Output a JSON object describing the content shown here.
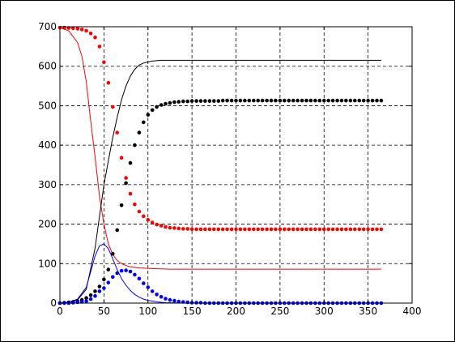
{
  "chart_data": {
    "type": "line",
    "title": "",
    "xlabel": "",
    "ylabel": "",
    "xlim": [
      0,
      400
    ],
    "ylim": [
      0,
      700
    ],
    "x_ticks": [
      0,
      50,
      100,
      150,
      200,
      250,
      300,
      350,
      400
    ],
    "y_ticks": [
      0,
      100,
      200,
      300,
      400,
      500,
      600,
      700
    ],
    "grid": true,
    "legend": "none",
    "series": [
      {
        "style": "line",
        "color": "#ff0000",
        "x": [
          0,
          10,
          20,
          25,
          30,
          35,
          40,
          45,
          50,
          55,
          60,
          65,
          70,
          75,
          80,
          90,
          100,
          110,
          125,
          150,
          200,
          250,
          300,
          365
        ],
        "y": [
          697,
          690,
          660,
          625,
          560,
          460,
          370,
          270,
          200,
          150,
          123,
          108,
          100,
          95,
          92,
          89,
          88,
          87,
          86,
          86,
          86,
          86,
          86,
          86
        ]
      },
      {
        "style": "line",
        "color": "#000000",
        "x": [
          0,
          10,
          20,
          30,
          40,
          45,
          50,
          55,
          60,
          65,
          70,
          75,
          80,
          85,
          90,
          95,
          100,
          105,
          110,
          115,
          120,
          125,
          150,
          200,
          250,
          300,
          365
        ],
        "y": [
          0,
          2,
          8,
          35,
          140,
          220,
          300,
          360,
          420,
          470,
          515,
          550,
          575,
          592,
          603,
          608,
          611,
          613,
          614,
          615,
          615,
          615,
          615,
          615,
          615,
          615,
          615
        ]
      },
      {
        "style": "line",
        "color": "#0000ff",
        "x": [
          0,
          10,
          20,
          30,
          35,
          40,
          45,
          50,
          55,
          60,
          65,
          70,
          75,
          80,
          85,
          90,
          95,
          100,
          110,
          120,
          140,
          200,
          365
        ],
        "y": [
          0,
          2,
          10,
          40,
          80,
          120,
          145,
          150,
          138,
          112,
          85,
          62,
          45,
          32,
          22,
          15,
          10,
          7,
          3,
          1,
          0,
          0,
          0
        ]
      },
      {
        "style": "markers",
        "color": "#ff0000",
        "x": [
          0,
          5,
          10,
          15,
          20,
          25,
          30,
          35,
          40,
          45,
          50,
          55,
          60,
          65,
          70,
          75,
          80,
          85,
          90,
          95,
          100,
          105,
          110,
          115,
          120,
          125,
          130,
          135,
          140,
          145,
          150,
          155,
          160,
          165,
          170,
          175,
          180,
          185,
          190,
          195,
          200,
          205,
          210,
          215,
          220,
          225,
          230,
          235,
          240,
          245,
          250,
          255,
          260,
          265,
          270,
          275,
          280,
          285,
          290,
          295,
          300,
          305,
          310,
          315,
          320,
          325,
          330,
          335,
          340,
          345,
          350,
          355,
          360,
          365
        ],
        "y": [
          698,
          698,
          697,
          696,
          695,
          693,
          690,
          683,
          673,
          650,
          610,
          558,
          497,
          432,
          368,
          317,
          277,
          250,
          232,
          220,
          211,
          204,
          199,
          196,
          193,
          191,
          190,
          189,
          188,
          188,
          187,
          187,
          187,
          187,
          187,
          187,
          187,
          187,
          187,
          187,
          187,
          187,
          187,
          187,
          187,
          187,
          187,
          187,
          187,
          187,
          187,
          187,
          187,
          187,
          187,
          187,
          187,
          187,
          187,
          187,
          187,
          187,
          187,
          187,
          187,
          187,
          187,
          187,
          187,
          187,
          187,
          187,
          187,
          187
        ]
      },
      {
        "style": "markers",
        "color": "#000000",
        "x": [
          0,
          5,
          10,
          15,
          20,
          25,
          30,
          35,
          40,
          45,
          50,
          55,
          60,
          65,
          70,
          75,
          80,
          85,
          90,
          95,
          100,
          105,
          110,
          115,
          120,
          125,
          130,
          135,
          140,
          145,
          150,
          155,
          160,
          165,
          170,
          175,
          180,
          185,
          190,
          195,
          200,
          205,
          210,
          215,
          220,
          225,
          230,
          235,
          240,
          245,
          250,
          255,
          260,
          265,
          270,
          275,
          280,
          285,
          290,
          295,
          300,
          305,
          310,
          315,
          320,
          325,
          330,
          335,
          340,
          345,
          350,
          355,
          360,
          365
        ],
        "y": [
          0,
          1,
          2,
          3,
          5,
          8,
          13,
          20,
          30,
          42,
          60,
          85,
          125,
          185,
          248,
          304,
          355,
          400,
          432,
          458,
          477,
          489,
          497,
          502,
          505,
          507,
          509,
          510,
          511,
          511,
          512,
          512,
          512,
          512,
          512,
          512,
          512,
          513,
          513,
          513,
          513,
          513,
          513,
          513,
          513,
          513,
          513,
          513,
          513,
          513,
          513,
          513,
          513,
          513,
          513,
          513,
          513,
          513,
          513,
          513,
          513,
          513,
          513,
          513,
          513,
          513,
          513,
          513,
          513,
          513,
          513,
          513,
          513,
          513
        ]
      },
      {
        "style": "markers",
        "color": "#0000ff",
        "x": [
          0,
          5,
          10,
          15,
          20,
          25,
          30,
          35,
          40,
          45,
          50,
          55,
          60,
          65,
          70,
          75,
          80,
          85,
          90,
          95,
          100,
          105,
          110,
          115,
          120,
          125,
          130,
          135,
          140,
          145,
          150,
          155,
          160,
          165,
          170,
          175,
          180,
          185,
          190,
          195,
          200,
          205,
          210,
          215,
          220,
          225,
          230,
          235,
          240,
          245,
          250,
          255,
          260,
          265,
          270,
          275,
          280,
          285,
          290,
          295,
          300,
          305,
          310,
          315,
          320,
          325,
          330,
          335,
          340,
          345,
          350,
          355,
          360,
          365
        ],
        "y": [
          0,
          0,
          0,
          1,
          2,
          3,
          5,
          10,
          18,
          30,
          38,
          52,
          66,
          76,
          82,
          83,
          80,
          72,
          62,
          50,
          40,
          30,
          22,
          16,
          11,
          8,
          6,
          4,
          3,
          2,
          1,
          1,
          1,
          0,
          0,
          0,
          0,
          0,
          0,
          0,
          0,
          0,
          0,
          0,
          0,
          0,
          0,
          0,
          0,
          0,
          0,
          0,
          0,
          0,
          0,
          0,
          0,
          0,
          0,
          0,
          0,
          0,
          0,
          0,
          0,
          0,
          0,
          0,
          0,
          0,
          0,
          0,
          0,
          0
        ]
      }
    ]
  }
}
